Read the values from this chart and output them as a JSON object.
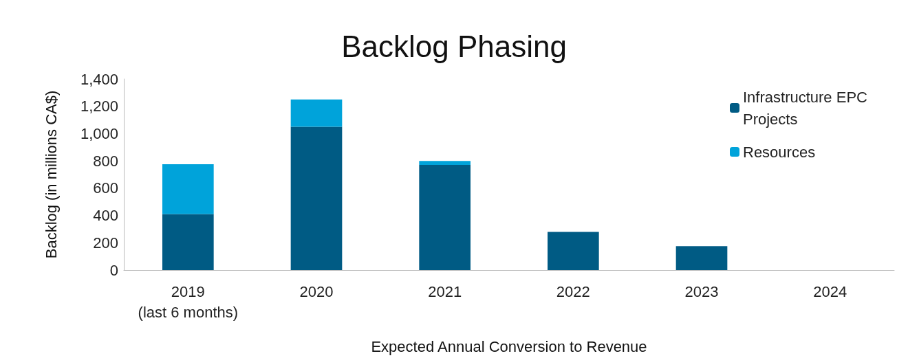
{
  "chart_data": {
    "type": "bar",
    "title": "Backlog Phasing",
    "xlabel": "Expected Annual Conversion to Revenue",
    "ylabel": "Backlog (in millions CA$)",
    "categories": [
      "2019\n(last 6 months)",
      "2020",
      "2021",
      "2022",
      "2023",
      "2024"
    ],
    "stacked": true,
    "series": [
      {
        "name": "Infrastructure EPC Projects",
        "color": "#005b84",
        "values": [
          410,
          1050,
          770,
          280,
          175,
          0
        ]
      },
      {
        "name": "Resources",
        "color": "#00a3da",
        "values": [
          365,
          200,
          30,
          0,
          0,
          0
        ]
      }
    ],
    "ylim": [
      0,
      1400
    ],
    "yticks": [
      0,
      200,
      400,
      600,
      800,
      {
        "value": 1000,
        "label": "1,000"
      },
      {
        "value": 1200,
        "label": "1,200"
      },
      {
        "value": 1400,
        "label": "1,400"
      }
    ],
    "grid": false,
    "legend": "top right"
  }
}
